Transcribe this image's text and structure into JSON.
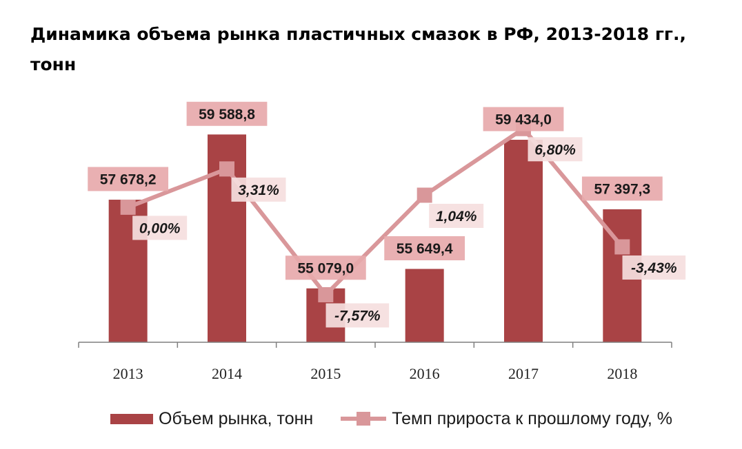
{
  "title": "Динамика объема рынка пластичных смазок в РФ, 2013-2018 гг., тонн",
  "legend": {
    "bar_label": "Объем рынка, тонн",
    "line_label": "Темп прироста к прошлому году, %"
  },
  "colors": {
    "bar": "#a94345",
    "line": "#d9979a",
    "label_bg_bar": "#e7a9ab",
    "label_bg_line": "#f5dede",
    "axis": "#7f7f7f"
  },
  "chart_data": {
    "type": "bar+line",
    "categories": [
      "2013",
      "2014",
      "2015",
      "2016",
      "2017",
      "2018"
    ],
    "series": [
      {
        "name": "Объем рынка, тонн",
        "type": "bar",
        "values": [
          57678.2,
          59588.8,
          55079.0,
          55649.4,
          59434.0,
          57397.3
        ],
        "labels": [
          "57 678,2",
          "59 588,8",
          "55 079,0",
          "55 649,4",
          "59 434,0",
          "57 397,3"
        ]
      },
      {
        "name": "Темп прироста к прошлому году, %",
        "type": "line",
        "values": [
          0.0,
          3.31,
          -7.57,
          1.04,
          6.8,
          -3.43
        ],
        "labels": [
          "0,00%",
          "3,31%",
          "-7,57%",
          "1,04%",
          "6,80%",
          "-3,43%"
        ]
      }
    ],
    "bar_ylim": [
      53500,
      60200
    ],
    "line_ylim": [
      -9.0,
      7.5
    ],
    "grid": false
  }
}
